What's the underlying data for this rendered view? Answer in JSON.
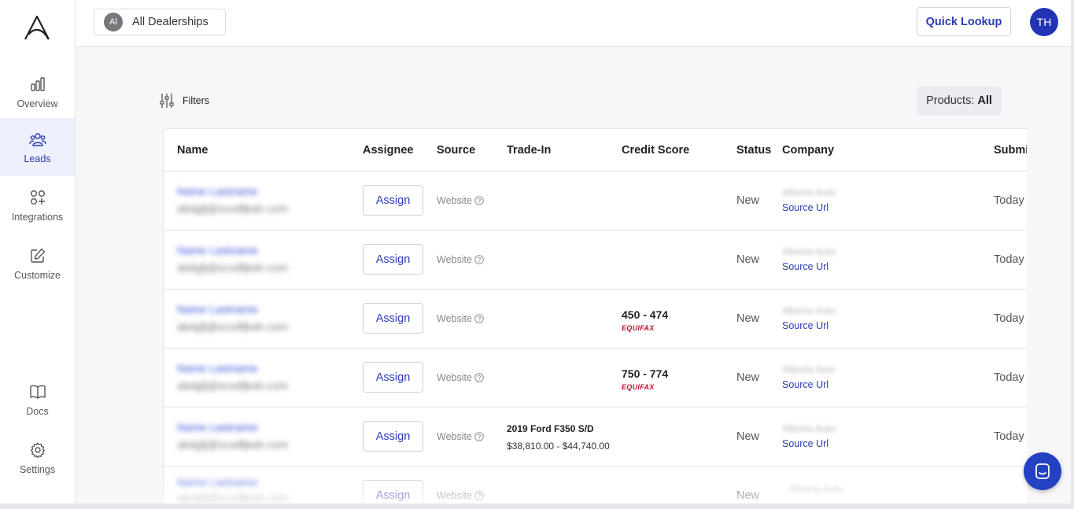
{
  "sidebar": {
    "items": [
      {
        "label": "Overview",
        "icon": "bar-chart-icon"
      },
      {
        "label": "Leads",
        "icon": "users-icon",
        "active": true
      },
      {
        "label": "Integrations",
        "icon": "integrations-icon"
      },
      {
        "label": "Customize",
        "icon": "edit-icon"
      },
      {
        "label": "Docs",
        "icon": "book-icon"
      },
      {
        "label": "Settings",
        "icon": "gear-icon"
      }
    ]
  },
  "header": {
    "dealer_initials": "Al",
    "dealer_label": "All Dealerships",
    "quick_lookup_label": "Quick Lookup",
    "user_initials": "TH"
  },
  "toolbar": {
    "filters_label": "Filters",
    "products_label": "Products:",
    "products_value": "All"
  },
  "table": {
    "columns": [
      "Name",
      "Assignee",
      "Source",
      "Trade-In",
      "Credit Score",
      "Status",
      "Company",
      "Submi"
    ],
    "rows": [
      {
        "name": "Name Lastname",
        "email": "abdgfj@scxdfjkah.com",
        "assign_label": "Assign",
        "source": "Website",
        "trade_in_title": "",
        "trade_in_price": "",
        "credit_score": "",
        "credit_bureau": "",
        "status": "New",
        "company": "Alberta Auto",
        "source_url": "Source Url",
        "submitted": "Today"
      },
      {
        "name": "Name Lastname",
        "email": "abdgfj@scxdfjkah.com",
        "assign_label": "Assign",
        "source": "Website",
        "trade_in_title": "",
        "trade_in_price": "",
        "credit_score": "",
        "credit_bureau": "",
        "status": "New",
        "company": "Alberta Auto",
        "source_url": "Source Url",
        "submitted": "Today"
      },
      {
        "name": "Name Lastname",
        "email": "abdgfj@scxdfjkah.com",
        "assign_label": "Assign",
        "source": "Website",
        "trade_in_title": "",
        "trade_in_price": "",
        "credit_score": "450 - 474",
        "credit_bureau": "EQUIFAX",
        "status": "New",
        "company": "Alberta Auto",
        "source_url": "Source Url",
        "submitted": "Today"
      },
      {
        "name": "Name Lastname",
        "email": "abdgfj@scxdfjkah.com",
        "assign_label": "Assign",
        "source": "Website",
        "trade_in_title": "",
        "trade_in_price": "",
        "credit_score": "750 - 774",
        "credit_bureau": "EQUIFAX",
        "status": "New",
        "company": "Alberta Auto",
        "source_url": "Source Url",
        "submitted": "Today"
      },
      {
        "name": "Name Lastname",
        "email": "abdgfj@scxdfjkah.com",
        "assign_label": "Assign",
        "source": "Website",
        "trade_in_title": "2019 Ford F350 S/D",
        "trade_in_price": "$38,810.00 - $44,740.00",
        "credit_score": "",
        "credit_bureau": "",
        "status": "New",
        "company": "Alberta Auto",
        "source_url": "Source Url",
        "submitted": "Today"
      },
      {
        "name": "Name Lastname",
        "email": "abdgfj@scxdfjkah.com",
        "assign_label": "Assign",
        "source": "Website",
        "trade_in_title": "",
        "trade_in_price": "",
        "credit_score": "",
        "credit_bureau": "",
        "status": "New",
        "company": "Alberta Auto",
        "source_url": "",
        "submitted": ""
      }
    ]
  },
  "colors": {
    "accent": "#2c3bb5",
    "avatar": "#2233b3",
    "equifax": "#c0102b",
    "chat": "#2341c2"
  }
}
